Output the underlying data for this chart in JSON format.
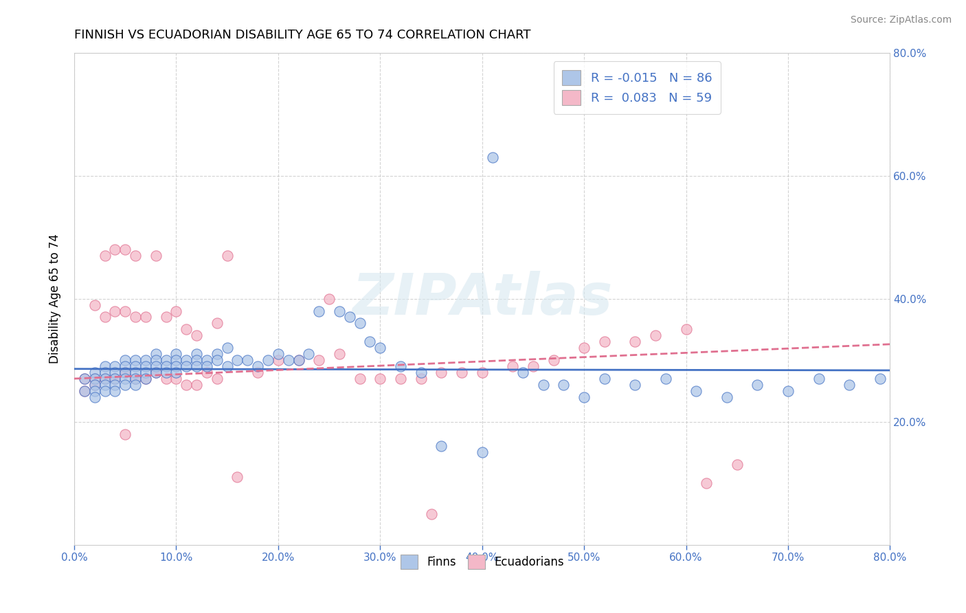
{
  "title": "FINNISH VS ECUADORIAN DISABILITY AGE 65 TO 74 CORRELATION CHART",
  "source": "Source: ZipAtlas.com",
  "ylabel": "Disability Age 65 to 74",
  "xlim": [
    0.0,
    0.8
  ],
  "ylim": [
    0.0,
    0.8
  ],
  "ytick_values": [
    0.2,
    0.4,
    0.6,
    0.8
  ],
  "xtick_values": [
    0.0,
    0.1,
    0.2,
    0.3,
    0.4,
    0.5,
    0.6,
    0.7,
    0.8
  ],
  "finns_color": "#aec6e8",
  "ecuadorians_color": "#f4b8c8",
  "finns_line_color": "#4472c4",
  "ecuadorians_line_color": "#e07090",
  "watermark": "ZIPAtlas",
  "legend_R_finns": "-0.015",
  "legend_N_finns": "86",
  "legend_R_ecuadorians": "0.083",
  "legend_N_ecuadorians": "59",
  "finns_x": [
    0.01,
    0.01,
    0.02,
    0.02,
    0.02,
    0.02,
    0.02,
    0.03,
    0.03,
    0.03,
    0.03,
    0.03,
    0.04,
    0.04,
    0.04,
    0.04,
    0.04,
    0.05,
    0.05,
    0.05,
    0.05,
    0.05,
    0.06,
    0.06,
    0.06,
    0.06,
    0.06,
    0.07,
    0.07,
    0.07,
    0.07,
    0.08,
    0.08,
    0.08,
    0.08,
    0.09,
    0.09,
    0.09,
    0.1,
    0.1,
    0.1,
    0.1,
    0.11,
    0.11,
    0.12,
    0.12,
    0.12,
    0.13,
    0.13,
    0.14,
    0.14,
    0.15,
    0.15,
    0.16,
    0.17,
    0.18,
    0.19,
    0.2,
    0.21,
    0.22,
    0.23,
    0.24,
    0.26,
    0.27,
    0.28,
    0.29,
    0.3,
    0.32,
    0.34,
    0.36,
    0.4,
    0.41,
    0.44,
    0.46,
    0.48,
    0.5,
    0.52,
    0.55,
    0.58,
    0.61,
    0.64,
    0.67,
    0.7,
    0.73,
    0.76,
    0.79
  ],
  "finns_y": [
    0.27,
    0.25,
    0.28,
    0.27,
    0.26,
    0.25,
    0.24,
    0.29,
    0.28,
    0.27,
    0.26,
    0.25,
    0.29,
    0.28,
    0.27,
    0.26,
    0.25,
    0.3,
    0.29,
    0.28,
    0.27,
    0.26,
    0.3,
    0.29,
    0.28,
    0.27,
    0.26,
    0.3,
    0.29,
    0.28,
    0.27,
    0.31,
    0.3,
    0.29,
    0.28,
    0.3,
    0.29,
    0.28,
    0.31,
    0.3,
    0.29,
    0.28,
    0.3,
    0.29,
    0.31,
    0.3,
    0.29,
    0.3,
    0.29,
    0.31,
    0.3,
    0.32,
    0.29,
    0.3,
    0.3,
    0.29,
    0.3,
    0.31,
    0.3,
    0.3,
    0.31,
    0.38,
    0.38,
    0.37,
    0.36,
    0.33,
    0.32,
    0.29,
    0.28,
    0.16,
    0.15,
    0.63,
    0.28,
    0.26,
    0.26,
    0.24,
    0.27,
    0.26,
    0.27,
    0.25,
    0.24,
    0.26,
    0.25,
    0.27,
    0.26,
    0.27
  ],
  "ecuadorians_x": [
    0.01,
    0.01,
    0.02,
    0.02,
    0.02,
    0.03,
    0.03,
    0.03,
    0.04,
    0.04,
    0.04,
    0.05,
    0.05,
    0.05,
    0.05,
    0.06,
    0.06,
    0.06,
    0.07,
    0.07,
    0.08,
    0.08,
    0.09,
    0.09,
    0.1,
    0.1,
    0.11,
    0.11,
    0.12,
    0.12,
    0.13,
    0.14,
    0.14,
    0.15,
    0.16,
    0.18,
    0.2,
    0.22,
    0.24,
    0.25,
    0.26,
    0.28,
    0.3,
    0.32,
    0.34,
    0.36,
    0.38,
    0.4,
    0.43,
    0.45,
    0.47,
    0.5,
    0.52,
    0.55,
    0.57,
    0.6,
    0.62,
    0.65,
    0.35
  ],
  "ecuadorians_y": [
    0.27,
    0.25,
    0.39,
    0.27,
    0.26,
    0.47,
    0.37,
    0.27,
    0.48,
    0.38,
    0.27,
    0.48,
    0.38,
    0.28,
    0.18,
    0.47,
    0.37,
    0.27,
    0.37,
    0.27,
    0.47,
    0.28,
    0.37,
    0.27,
    0.38,
    0.27,
    0.35,
    0.26,
    0.34,
    0.26,
    0.28,
    0.36,
    0.27,
    0.47,
    0.11,
    0.28,
    0.3,
    0.3,
    0.3,
    0.4,
    0.31,
    0.27,
    0.27,
    0.27,
    0.27,
    0.28,
    0.28,
    0.28,
    0.29,
    0.29,
    0.3,
    0.32,
    0.33,
    0.33,
    0.34,
    0.35,
    0.1,
    0.13,
    0.05
  ]
}
